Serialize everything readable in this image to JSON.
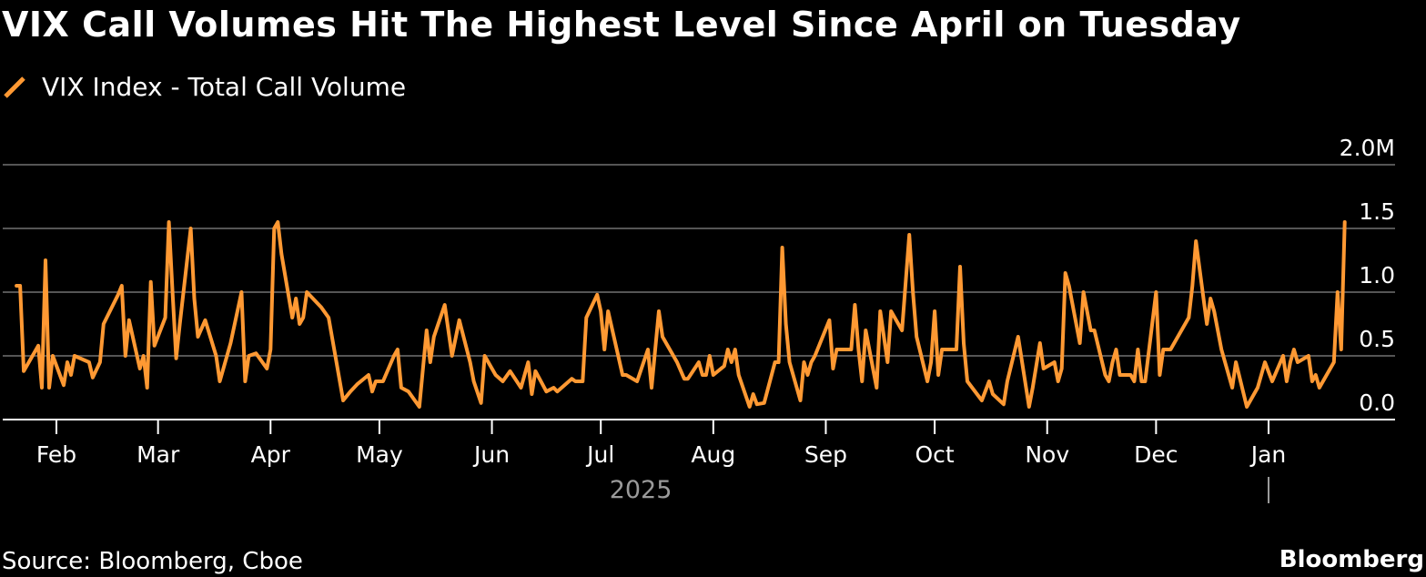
{
  "title": "VIX Call Volumes Hit The Highest Level Since April on Tuesday",
  "source": "Source: Bloomberg, Cboe",
  "brand": "Bloomberg",
  "colors": {
    "background": "#000000",
    "series": "#ff9933",
    "grid": "#555555",
    "text": "#ffffff",
    "year_label": "#9a9a9a"
  },
  "chart_data": {
    "type": "line",
    "xlabel": "",
    "ylabel": "",
    "year_label": "2025",
    "grid": true,
    "legend_position": "top-left",
    "ylim": [
      0,
      2.0
    ],
    "y_ticks": [
      0.0,
      0.5,
      1.0,
      1.5,
      2.0
    ],
    "y_tick_labels": [
      "0.0",
      "0.5",
      "1.0",
      "1.5",
      "2.0M"
    ],
    "x_range": [
      "2025-01-20",
      "2026-01-22"
    ],
    "x_ticks": [
      {
        "label": "Feb",
        "date": "2025-02-01"
      },
      {
        "label": "Mar",
        "date": "2025-03-01"
      },
      {
        "label": "Apr",
        "date": "2025-04-01"
      },
      {
        "label": "May",
        "date": "2025-05-01"
      },
      {
        "label": "Jun",
        "date": "2025-06-01"
      },
      {
        "label": "Jul",
        "date": "2025-07-01"
      },
      {
        "label": "Aug",
        "date": "2025-08-01"
      },
      {
        "label": "Sep",
        "date": "2025-09-01"
      },
      {
        "label": "Oct",
        "date": "2025-10-01"
      },
      {
        "label": "Nov",
        "date": "2025-11-01"
      },
      {
        "label": "Dec",
        "date": "2025-12-01"
      },
      {
        "label": "Jan",
        "date": "2026-01-01"
      }
    ],
    "series": [
      {
        "name": "VIX Index - Total Call Volume",
        "color": "#ff9933",
        "values": [
          [
            "2025-01-21",
            1.05
          ],
          [
            "2025-01-22",
            1.05
          ],
          [
            "2025-01-23",
            0.38
          ],
          [
            "2025-01-27",
            0.58
          ],
          [
            "2025-01-28",
            0.25
          ],
          [
            "2025-01-29",
            1.25
          ],
          [
            "2025-01-30",
            0.25
          ],
          [
            "2025-01-31",
            0.5
          ],
          [
            "2025-02-03",
            0.27
          ],
          [
            "2025-02-04",
            0.45
          ],
          [
            "2025-02-05",
            0.35
          ],
          [
            "2025-02-06",
            0.5
          ],
          [
            "2025-02-10",
            0.45
          ],
          [
            "2025-02-11",
            0.33
          ],
          [
            "2025-02-13",
            0.45
          ],
          [
            "2025-02-14",
            0.75
          ],
          [
            "2025-02-18",
            0.98
          ],
          [
            "2025-02-19",
            1.05
          ],
          [
            "2025-02-20",
            0.5
          ],
          [
            "2025-02-21",
            0.78
          ],
          [
            "2025-02-24",
            0.4
          ],
          [
            "2025-02-25",
            0.5
          ],
          [
            "2025-02-26",
            0.25
          ],
          [
            "2025-02-27",
            1.08
          ],
          [
            "2025-02-28",
            0.58
          ],
          [
            "2025-03-03",
            0.8
          ],
          [
            "2025-03-04",
            1.55
          ],
          [
            "2025-03-05",
            1.0
          ],
          [
            "2025-03-06",
            0.48
          ],
          [
            "2025-03-07",
            0.75
          ],
          [
            "2025-03-10",
            1.5
          ],
          [
            "2025-03-11",
            0.95
          ],
          [
            "2025-03-12",
            0.65
          ],
          [
            "2025-03-14",
            0.78
          ],
          [
            "2025-03-17",
            0.5
          ],
          [
            "2025-03-18",
            0.3
          ],
          [
            "2025-03-21",
            0.6
          ],
          [
            "2025-03-24",
            1.0
          ],
          [
            "2025-03-25",
            0.3
          ],
          [
            "2025-03-26",
            0.5
          ],
          [
            "2025-03-28",
            0.52
          ],
          [
            "2025-03-31",
            0.4
          ],
          [
            "2025-04-01",
            0.55
          ],
          [
            "2025-04-02",
            1.5
          ],
          [
            "2025-04-03",
            1.55
          ],
          [
            "2025-04-04",
            1.3
          ],
          [
            "2025-04-07",
            0.8
          ],
          [
            "2025-04-08",
            0.95
          ],
          [
            "2025-04-09",
            0.75
          ],
          [
            "2025-04-10",
            0.8
          ],
          [
            "2025-04-11",
            1.0
          ],
          [
            "2025-04-15",
            0.88
          ],
          [
            "2025-04-17",
            0.8
          ],
          [
            "2025-04-21",
            0.15
          ],
          [
            "2025-04-23",
            0.22
          ],
          [
            "2025-04-25",
            0.28
          ],
          [
            "2025-04-28",
            0.35
          ],
          [
            "2025-04-29",
            0.22
          ],
          [
            "2025-04-30",
            0.3
          ],
          [
            "2025-05-02",
            0.3
          ],
          [
            "2025-05-05",
            0.5
          ],
          [
            "2025-05-06",
            0.55
          ],
          [
            "2025-05-07",
            0.25
          ],
          [
            "2025-05-09",
            0.22
          ],
          [
            "2025-05-12",
            0.1
          ],
          [
            "2025-05-14",
            0.7
          ],
          [
            "2025-05-15",
            0.45
          ],
          [
            "2025-05-16",
            0.65
          ],
          [
            "2025-05-19",
            0.9
          ],
          [
            "2025-05-21",
            0.5
          ],
          [
            "2025-05-23",
            0.78
          ],
          [
            "2025-05-26",
            0.45
          ],
          [
            "2025-05-27",
            0.3
          ],
          [
            "2025-05-29",
            0.13
          ],
          [
            "2025-05-30",
            0.5
          ],
          [
            "2025-06-02",
            0.35
          ],
          [
            "2025-06-04",
            0.3
          ],
          [
            "2025-06-06",
            0.38
          ],
          [
            "2025-06-09",
            0.25
          ],
          [
            "2025-06-11",
            0.45
          ],
          [
            "2025-06-12",
            0.2
          ],
          [
            "2025-06-13",
            0.38
          ],
          [
            "2025-06-16",
            0.22
          ],
          [
            "2025-06-18",
            0.25
          ],
          [
            "2025-06-19",
            0.22
          ],
          [
            "2025-06-23",
            0.32
          ],
          [
            "2025-06-24",
            0.3
          ],
          [
            "2025-06-26",
            0.3
          ],
          [
            "2025-06-27",
            0.8
          ],
          [
            "2025-06-30",
            0.98
          ],
          [
            "2025-07-01",
            0.85
          ],
          [
            "2025-07-02",
            0.55
          ],
          [
            "2025-07-03",
            0.85
          ],
          [
            "2025-07-07",
            0.35
          ],
          [
            "2025-07-08",
            0.35
          ],
          [
            "2025-07-11",
            0.3
          ],
          [
            "2025-07-14",
            0.55
          ],
          [
            "2025-07-15",
            0.25
          ],
          [
            "2025-07-17",
            0.85
          ],
          [
            "2025-07-18",
            0.65
          ],
          [
            "2025-07-21",
            0.5
          ],
          [
            "2025-07-22",
            0.45
          ],
          [
            "2025-07-24",
            0.32
          ],
          [
            "2025-07-25",
            0.32
          ],
          [
            "2025-07-28",
            0.45
          ],
          [
            "2025-07-29",
            0.35
          ],
          [
            "2025-07-30",
            0.35
          ],
          [
            "2025-07-31",
            0.5
          ],
          [
            "2025-08-01",
            0.35
          ],
          [
            "2025-08-04",
            0.42
          ],
          [
            "2025-08-05",
            0.55
          ],
          [
            "2025-08-06",
            0.45
          ],
          [
            "2025-08-07",
            0.55
          ],
          [
            "2025-08-08",
            0.35
          ],
          [
            "2025-08-11",
            0.1
          ],
          [
            "2025-08-12",
            0.2
          ],
          [
            "2025-08-13",
            0.12
          ],
          [
            "2025-08-15",
            0.13
          ],
          [
            "2025-08-18",
            0.45
          ],
          [
            "2025-08-19",
            0.45
          ],
          [
            "2025-08-20",
            1.35
          ],
          [
            "2025-08-21",
            0.75
          ],
          [
            "2025-08-22",
            0.45
          ],
          [
            "2025-08-25",
            0.15
          ],
          [
            "2025-08-26",
            0.45
          ],
          [
            "2025-08-27",
            0.35
          ],
          [
            "2025-08-28",
            0.45
          ],
          [
            "2025-08-29",
            0.5
          ],
          [
            "2025-09-02",
            0.78
          ],
          [
            "2025-09-03",
            0.4
          ],
          [
            "2025-09-04",
            0.55
          ],
          [
            "2025-09-05",
            0.55
          ],
          [
            "2025-09-08",
            0.55
          ],
          [
            "2025-09-09",
            0.9
          ],
          [
            "2025-09-10",
            0.55
          ],
          [
            "2025-09-11",
            0.3
          ],
          [
            "2025-09-12",
            0.7
          ],
          [
            "2025-09-15",
            0.25
          ],
          [
            "2025-09-16",
            0.85
          ],
          [
            "2025-09-18",
            0.45
          ],
          [
            "2025-09-19",
            0.85
          ],
          [
            "2025-09-22",
            0.7
          ],
          [
            "2025-09-24",
            1.45
          ],
          [
            "2025-09-25",
            1.0
          ],
          [
            "2025-09-26",
            0.65
          ],
          [
            "2025-09-29",
            0.3
          ],
          [
            "2025-09-30",
            0.45
          ],
          [
            "2025-10-01",
            0.85
          ],
          [
            "2025-10-02",
            0.35
          ],
          [
            "2025-10-03",
            0.55
          ],
          [
            "2025-10-06",
            0.55
          ],
          [
            "2025-10-07",
            0.55
          ],
          [
            "2025-10-08",
            1.2
          ],
          [
            "2025-10-09",
            0.6
          ],
          [
            "2025-10-10",
            0.3
          ],
          [
            "2025-10-14",
            0.15
          ],
          [
            "2025-10-16",
            0.3
          ],
          [
            "2025-10-17",
            0.2
          ],
          [
            "2025-10-20",
            0.12
          ],
          [
            "2025-10-21",
            0.3
          ],
          [
            "2025-10-24",
            0.65
          ],
          [
            "2025-10-27",
            0.1
          ],
          [
            "2025-10-28",
            0.25
          ],
          [
            "2025-10-30",
            0.6
          ],
          [
            "2025-10-31",
            0.4
          ],
          [
            "2025-11-03",
            0.45
          ],
          [
            "2025-11-04",
            0.3
          ],
          [
            "2025-11-05",
            0.4
          ],
          [
            "2025-11-06",
            1.15
          ],
          [
            "2025-11-07",
            1.05
          ],
          [
            "2025-11-10",
            0.6
          ],
          [
            "2025-11-11",
            1.0
          ],
          [
            "2025-11-12",
            0.85
          ],
          [
            "2025-11-13",
            0.7
          ],
          [
            "2025-11-14",
            0.7
          ],
          [
            "2025-11-17",
            0.35
          ],
          [
            "2025-11-18",
            0.3
          ],
          [
            "2025-11-19",
            0.45
          ],
          [
            "2025-11-20",
            0.55
          ],
          [
            "2025-11-21",
            0.35
          ],
          [
            "2025-11-24",
            0.35
          ],
          [
            "2025-11-25",
            0.3
          ],
          [
            "2025-11-26",
            0.55
          ],
          [
            "2025-11-27",
            0.3
          ],
          [
            "2025-11-28",
            0.3
          ],
          [
            "2025-12-01",
            1.0
          ],
          [
            "2025-12-02",
            0.35
          ],
          [
            "2025-12-03",
            0.55
          ],
          [
            "2025-12-05",
            0.55
          ],
          [
            "2025-12-08",
            0.7
          ],
          [
            "2025-12-10",
            0.8
          ],
          [
            "2025-12-11",
            1.05
          ],
          [
            "2025-12-12",
            1.4
          ],
          [
            "2025-12-15",
            0.75
          ],
          [
            "2025-12-16",
            0.95
          ],
          [
            "2025-12-17",
            0.85
          ],
          [
            "2025-12-19",
            0.55
          ],
          [
            "2025-12-22",
            0.25
          ],
          [
            "2025-12-23",
            0.45
          ],
          [
            "2025-12-26",
            0.1
          ],
          [
            "2025-12-29",
            0.25
          ],
          [
            "2025-12-31",
            0.45
          ],
          [
            "2026-01-02",
            0.3
          ],
          [
            "2026-01-05",
            0.5
          ],
          [
            "2026-01-06",
            0.3
          ],
          [
            "2026-01-07",
            0.45
          ],
          [
            "2026-01-08",
            0.55
          ],
          [
            "2026-01-09",
            0.45
          ],
          [
            "2026-01-12",
            0.5
          ],
          [
            "2026-01-13",
            0.3
          ],
          [
            "2026-01-14",
            0.35
          ],
          [
            "2026-01-15",
            0.25
          ],
          [
            "2026-01-16",
            0.3
          ],
          [
            "2026-01-19",
            0.45
          ],
          [
            "2026-01-20",
            1.0
          ],
          [
            "2026-01-21",
            0.55
          ],
          [
            "2026-01-22",
            1.55
          ]
        ]
      }
    ]
  }
}
